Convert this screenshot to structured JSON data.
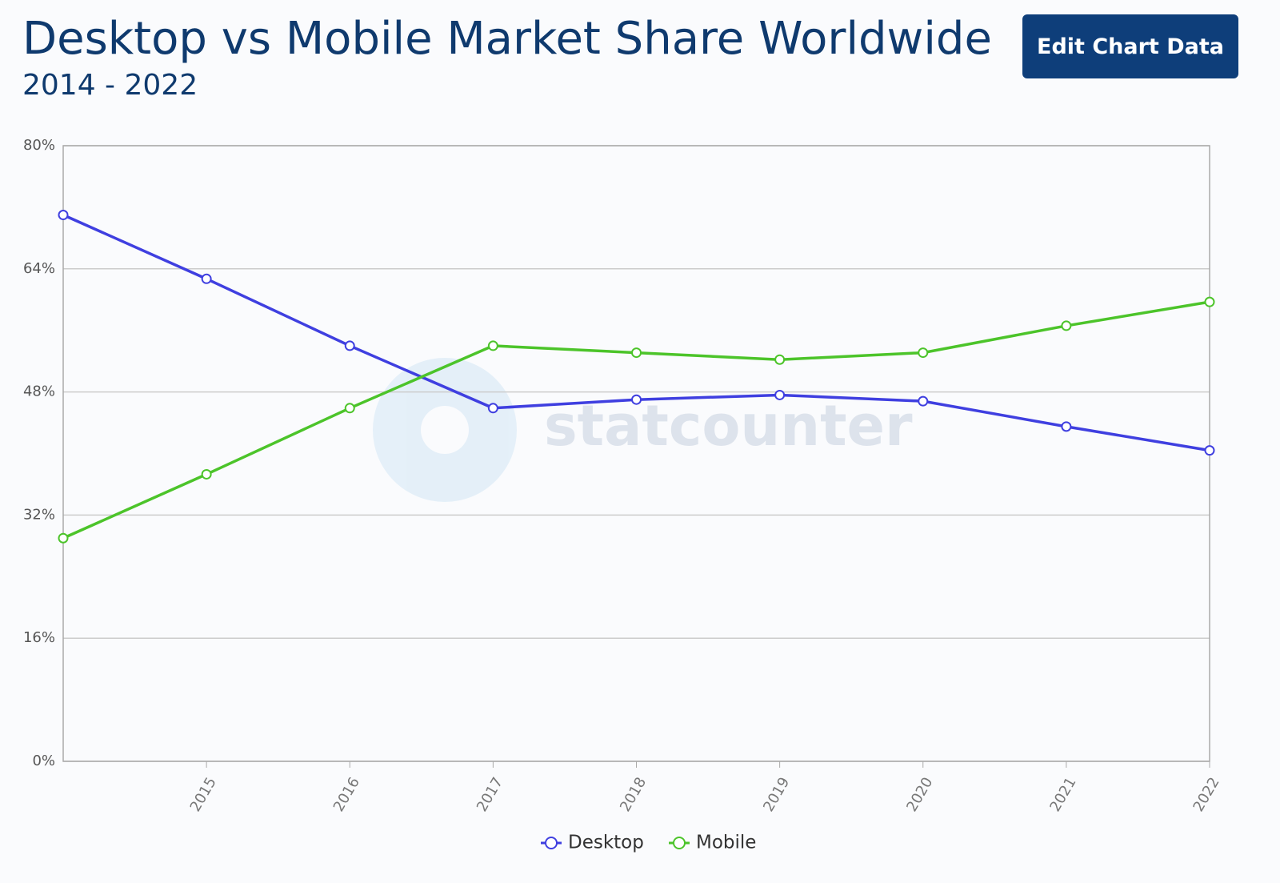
{
  "chart_data": {
    "type": "line",
    "title": "Desktop vs Mobile Market Share Worldwide",
    "subtitle": "2014 - 2022",
    "button": "Edit Chart Data",
    "watermark": "statcounter",
    "x": [
      2014,
      2015,
      2016,
      2017,
      2018,
      2019,
      2020,
      2021,
      2022
    ],
    "xlim": [
      2014,
      2022
    ],
    "xticks": [
      2015,
      2016,
      2017,
      2018,
      2019,
      2020,
      2021,
      2022
    ],
    "ylim": [
      0,
      80
    ],
    "yticks": [
      {
        "value": 0,
        "label": "0%"
      },
      {
        "value": 16,
        "label": "16%"
      },
      {
        "value": 32,
        "label": "32%"
      },
      {
        "value": 48,
        "label": "48%"
      },
      {
        "value": 64,
        "label": "64%"
      },
      {
        "value": 80,
        "label": "80%"
      }
    ],
    "grid": true,
    "legend": "bottom",
    "series": [
      {
        "name": "Desktop",
        "color": "#3f3fe0",
        "values": [
          71.0,
          62.7,
          54.0,
          45.9,
          47.0,
          47.6,
          46.8,
          43.5,
          40.4
        ]
      },
      {
        "name": "Mobile",
        "color": "#4cc42a",
        "values": [
          29.0,
          37.3,
          45.9,
          54.0,
          53.1,
          52.2,
          53.1,
          56.6,
          59.7
        ]
      }
    ]
  }
}
